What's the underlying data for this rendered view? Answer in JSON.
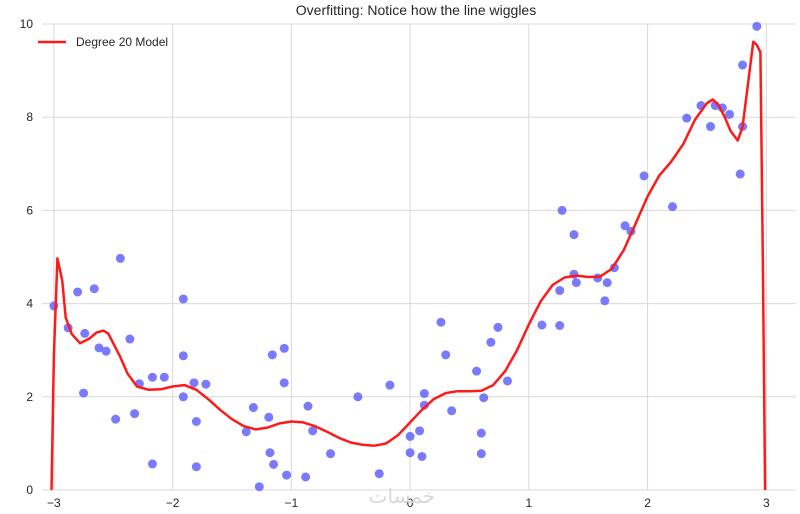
{
  "chart_data": {
    "type": "scatter",
    "title": "Overfitting: Notice how the line wiggles",
    "xlabel": "",
    "ylabel": "",
    "xlim": [
      -3.1,
      3.25
    ],
    "ylim": [
      0,
      10
    ],
    "xticks": [
      -3,
      -2,
      -1,
      0,
      1,
      2,
      3
    ],
    "yticks": [
      0,
      2,
      4,
      6,
      8,
      10
    ],
    "x_tick_labels": [
      "−3",
      "−2",
      "−1",
      "0",
      "1",
      "2",
      "3"
    ],
    "y_tick_labels": [
      "0",
      "2",
      "4",
      "6",
      "8",
      "10"
    ],
    "grid": true,
    "legend_position": "top-left",
    "series": [
      {
        "name": "",
        "kind": "scatter",
        "color": "#6b6bff",
        "points": [
          [
            -3.0,
            3.95
          ],
          [
            -2.88,
            3.48
          ],
          [
            -2.8,
            4.25
          ],
          [
            -2.75,
            2.08
          ],
          [
            -2.74,
            3.36
          ],
          [
            -2.66,
            4.32
          ],
          [
            -2.62,
            3.05
          ],
          [
            -2.56,
            2.98
          ],
          [
            -2.48,
            1.52
          ],
          [
            -2.44,
            4.97
          ],
          [
            -2.36,
            3.24
          ],
          [
            -2.32,
            1.64
          ],
          [
            -2.28,
            2.28
          ],
          [
            -2.17,
            2.42
          ],
          [
            -2.17,
            0.56
          ],
          [
            -2.07,
            2.42
          ],
          [
            -1.91,
            4.1
          ],
          [
            -1.91,
            2.88
          ],
          [
            -1.91,
            2.0
          ],
          [
            -1.82,
            2.3
          ],
          [
            -1.8,
            1.47
          ],
          [
            -1.8,
            0.5
          ],
          [
            -1.72,
            2.27
          ],
          [
            -1.38,
            1.25
          ],
          [
            -1.32,
            1.77
          ],
          [
            -1.27,
            0.07
          ],
          [
            -1.19,
            1.56
          ],
          [
            -1.18,
            0.8
          ],
          [
            -1.16,
            2.9
          ],
          [
            -1.15,
            0.55
          ],
          [
            -1.06,
            3.04
          ],
          [
            -1.06,
            2.3
          ],
          [
            -1.04,
            0.32
          ],
          [
            -0.88,
            0.28
          ],
          [
            -0.86,
            1.8
          ],
          [
            -0.82,
            1.27
          ],
          [
            -0.67,
            0.78
          ],
          [
            -0.44,
            2.0
          ],
          [
            -0.26,
            0.35
          ],
          [
            -0.17,
            2.25
          ],
          [
            0.0,
            1.15
          ],
          [
            0.0,
            0.8
          ],
          [
            0.08,
            1.27
          ],
          [
            0.1,
            0.72
          ],
          [
            0.12,
            2.07
          ],
          [
            0.12,
            1.82
          ],
          [
            0.26,
            3.6
          ],
          [
            0.3,
            2.9
          ],
          [
            0.35,
            1.7
          ],
          [
            0.56,
            2.55
          ],
          [
            0.6,
            1.22
          ],
          [
            0.6,
            0.78
          ],
          [
            0.62,
            1.98
          ],
          [
            0.68,
            3.17
          ],
          [
            0.74,
            3.49
          ],
          [
            0.82,
            2.34
          ],
          [
            1.11,
            3.54
          ],
          [
            1.26,
            3.53
          ],
          [
            1.26,
            4.28
          ],
          [
            1.28,
            6.0
          ],
          [
            1.38,
            4.63
          ],
          [
            1.38,
            5.48
          ],
          [
            1.4,
            4.45
          ],
          [
            1.58,
            4.55
          ],
          [
            1.64,
            4.06
          ],
          [
            1.66,
            4.45
          ],
          [
            1.72,
            4.77
          ],
          [
            1.81,
            5.67
          ],
          [
            1.86,
            5.55
          ],
          [
            1.97,
            6.74
          ],
          [
            2.21,
            6.08
          ],
          [
            2.33,
            7.98
          ],
          [
            2.45,
            8.25
          ],
          [
            2.53,
            7.8
          ],
          [
            2.57,
            8.25
          ],
          [
            2.63,
            8.2
          ],
          [
            2.69,
            8.06
          ],
          [
            2.78,
            6.78
          ],
          [
            2.8,
            7.8
          ],
          [
            2.8,
            9.12
          ],
          [
            2.92,
            9.95
          ]
        ]
      },
      {
        "name": "Degree 20 Model",
        "kind": "line",
        "color": "#ff1a1a",
        "points": [
          [
            -3.02,
            0.0
          ],
          [
            -3.0,
            2.9
          ],
          [
            -2.97,
            4.97
          ],
          [
            -2.93,
            4.5
          ],
          [
            -2.9,
            3.7
          ],
          [
            -2.85,
            3.35
          ],
          [
            -2.78,
            3.15
          ],
          [
            -2.7,
            3.25
          ],
          [
            -2.64,
            3.38
          ],
          [
            -2.58,
            3.42
          ],
          [
            -2.54,
            3.35
          ],
          [
            -2.5,
            3.15
          ],
          [
            -2.44,
            2.85
          ],
          [
            -2.38,
            2.5
          ],
          [
            -2.3,
            2.22
          ],
          [
            -2.2,
            2.15
          ],
          [
            -2.1,
            2.16
          ],
          [
            -2.0,
            2.22
          ],
          [
            -1.9,
            2.25
          ],
          [
            -1.8,
            2.15
          ],
          [
            -1.7,
            1.95
          ],
          [
            -1.6,
            1.72
          ],
          [
            -1.5,
            1.52
          ],
          [
            -1.4,
            1.37
          ],
          [
            -1.3,
            1.3
          ],
          [
            -1.2,
            1.34
          ],
          [
            -1.1,
            1.43
          ],
          [
            -1.0,
            1.47
          ],
          [
            -0.9,
            1.45
          ],
          [
            -0.8,
            1.37
          ],
          [
            -0.7,
            1.25
          ],
          [
            -0.6,
            1.12
          ],
          [
            -0.5,
            1.02
          ],
          [
            -0.4,
            0.97
          ],
          [
            -0.3,
            0.95
          ],
          [
            -0.2,
            1.0
          ],
          [
            -0.1,
            1.18
          ],
          [
            0.0,
            1.45
          ],
          [
            0.1,
            1.72
          ],
          [
            0.2,
            1.95
          ],
          [
            0.3,
            2.08
          ],
          [
            0.4,
            2.12
          ],
          [
            0.5,
            2.12
          ],
          [
            0.6,
            2.13
          ],
          [
            0.7,
            2.25
          ],
          [
            0.8,
            2.55
          ],
          [
            0.9,
            3.0
          ],
          [
            1.0,
            3.55
          ],
          [
            1.1,
            4.05
          ],
          [
            1.2,
            4.4
          ],
          [
            1.3,
            4.56
          ],
          [
            1.4,
            4.6
          ],
          [
            1.5,
            4.57
          ],
          [
            1.6,
            4.58
          ],
          [
            1.7,
            4.75
          ],
          [
            1.8,
            5.15
          ],
          [
            1.9,
            5.72
          ],
          [
            2.0,
            6.3
          ],
          [
            2.1,
            6.75
          ],
          [
            2.2,
            7.05
          ],
          [
            2.3,
            7.42
          ],
          [
            2.4,
            7.95
          ],
          [
            2.5,
            8.3
          ],
          [
            2.55,
            8.38
          ],
          [
            2.6,
            8.25
          ],
          [
            2.65,
            8.0
          ],
          [
            2.7,
            7.7
          ],
          [
            2.76,
            7.5
          ],
          [
            2.8,
            7.8
          ],
          [
            2.85,
            8.8
          ],
          [
            2.89,
            9.62
          ],
          [
            2.92,
            9.55
          ],
          [
            2.95,
            9.4
          ],
          [
            2.97,
            5.0
          ],
          [
            2.99,
            0.0
          ]
        ]
      }
    ]
  },
  "watermark_text": "خمسات"
}
